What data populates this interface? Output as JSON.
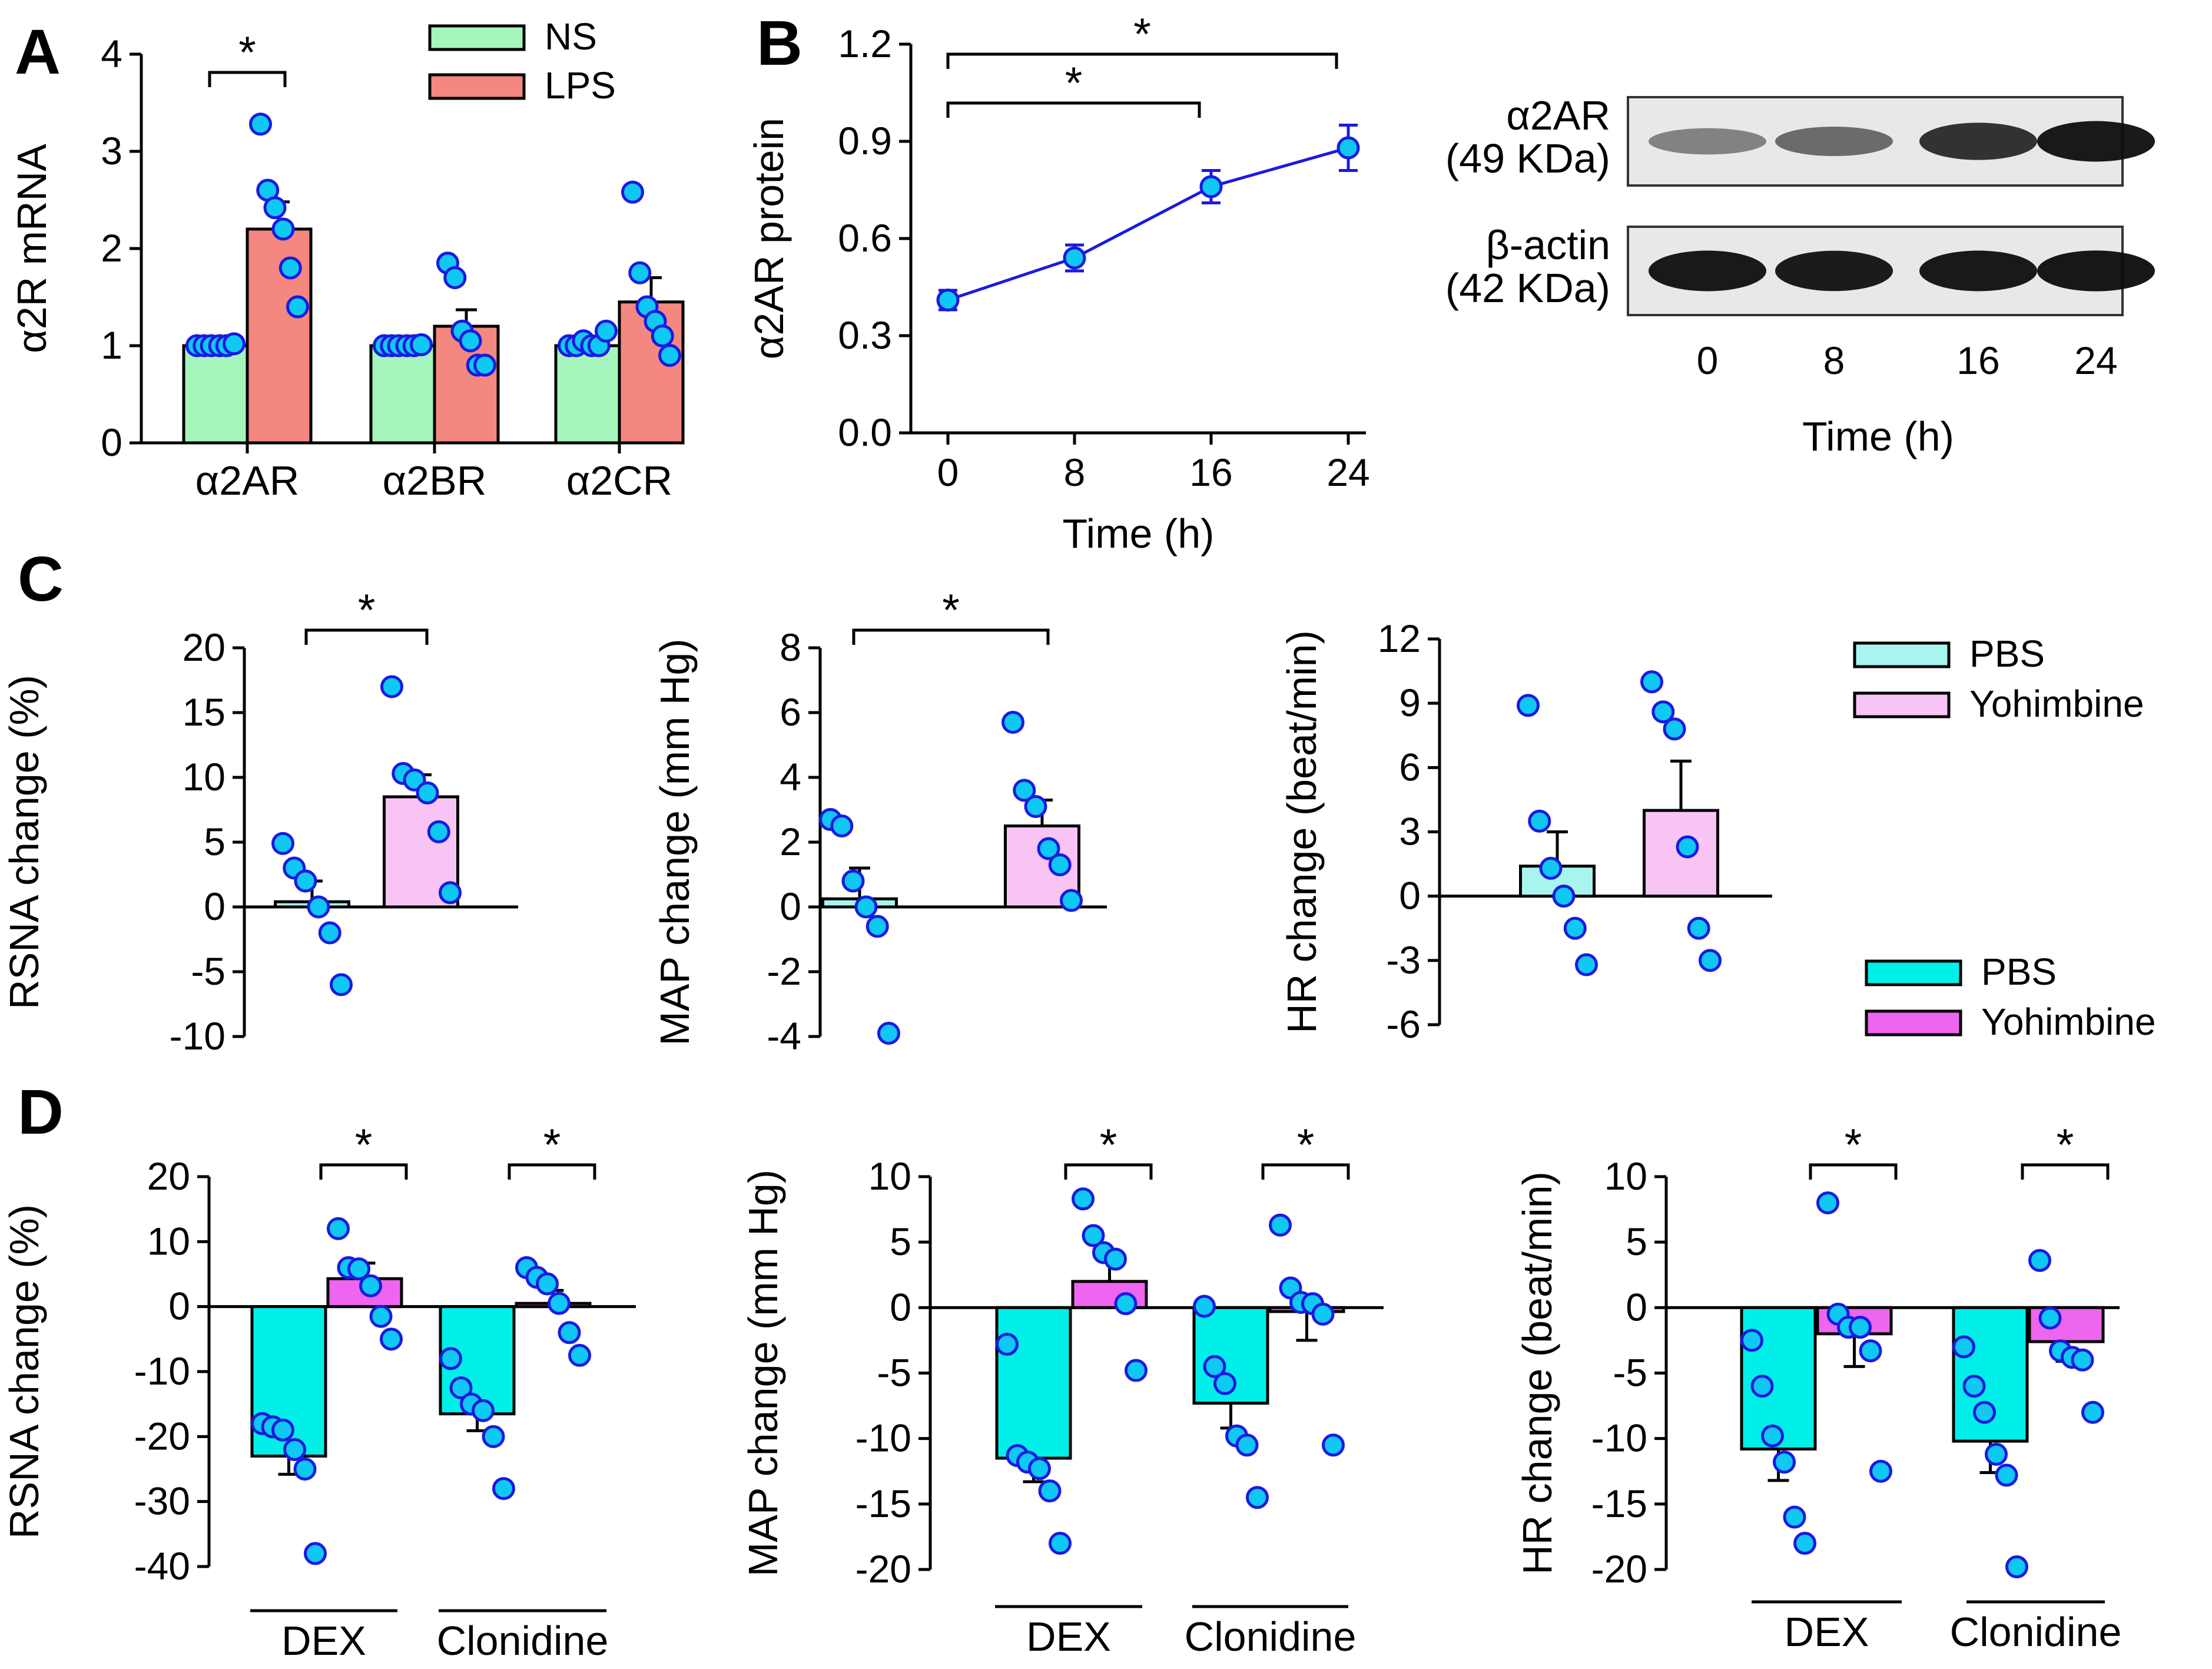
{
  "chart_data": [
    {
      "id": "A",
      "panel_label": "A",
      "type": "bar",
      "ylabel": "α2R mRNA",
      "ylim": [
        0,
        4
      ],
      "yticks": [
        0,
        1,
        2,
        3,
        4
      ],
      "categories": [
        "α2AR",
        "α2BR",
        "α2CR"
      ],
      "series": [
        {
          "name": "NS",
          "color": "#a6f5bd",
          "values": [
            1.0,
            1.0,
            1.0
          ],
          "sem": [
            0.02,
            0.02,
            0.03
          ],
          "points": [
            [
              1.0,
              1.0,
              1.0,
              1.0,
              1.0,
              1.02
            ],
            [
              1.0,
              1.0,
              1.0,
              1.0,
              1.0,
              1.01
            ],
            [
              1.0,
              1.0,
              1.05,
              1.0,
              1.0,
              1.15
            ]
          ]
        },
        {
          "name": "LPS",
          "color": "#f4877f",
          "values": [
            2.2,
            1.2,
            1.45
          ],
          "sem": [
            0.28,
            0.17,
            0.25
          ],
          "points": [
            [
              3.28,
              2.6,
              2.42,
              2.2,
              1.8,
              1.4
            ],
            [
              1.85,
              1.7,
              1.15,
              1.05,
              0.8,
              0.8
            ],
            [
              2.58,
              1.75,
              1.4,
              1.25,
              1.1,
              0.9
            ]
          ]
        }
      ],
      "significance": [
        {
          "category": 0,
          "label": "*"
        }
      ],
      "legend": "top-right"
    },
    {
      "id": "B",
      "panel_label": "B",
      "type": "line",
      "xlabel": "Time (h)",
      "ylabel": "α2AR protein",
      "x": [
        0,
        8,
        16,
        24
      ],
      "xticks": [
        "0",
        "8",
        "16",
        "24"
      ],
      "ylim": [
        0,
        1.2
      ],
      "yticks": [
        "0.0",
        "0.3",
        "0.6",
        "0.9",
        "1.2"
      ],
      "series": [
        {
          "name": "α2AR protein",
          "values": [
            0.41,
            0.54,
            0.76,
            0.88
          ],
          "sem": [
            0.03,
            0.04,
            0.05,
            0.07
          ]
        }
      ],
      "significance": [
        {
          "from_index": 0,
          "to_index": 2,
          "label": "*"
        },
        {
          "from_index": 0,
          "to_index": 3,
          "label": "*"
        }
      ]
    },
    {
      "id": "C1",
      "panel_label": "C",
      "type": "bar",
      "ylabel": "RSNA change (%)",
      "ylim": [
        -10,
        20
      ],
      "yticks": [
        -10,
        -5,
        0,
        5,
        10,
        15,
        20
      ],
      "categories": [
        "PBS",
        "Yohimbine"
      ],
      "series": [
        {
          "name": "mean",
          "colors": [
            "#a8f5f0",
            "#f8c4f4"
          ],
          "values": [
            0.4,
            8.5
          ],
          "sem": [
            1.6,
            1.7
          ],
          "points": [
            [
              4.9,
              3.0,
              2.0,
              0.0,
              -2.0,
              -6.0
            ],
            [
              17.0,
              10.3,
              9.8,
              8.8,
              5.8,
              1.1
            ]
          ]
        }
      ],
      "significance": [
        {
          "from_index": 0,
          "to_index": 1,
          "label": "*"
        }
      ]
    },
    {
      "id": "C2",
      "panel_label": "",
      "type": "bar",
      "ylabel": "MAP change (mm Hg)",
      "ylim": [
        -4,
        8
      ],
      "yticks": [
        -4,
        -2,
        0,
        2,
        4,
        6,
        8
      ],
      "categories": [
        "PBS",
        "Yohimbine"
      ],
      "series": [
        {
          "name": "mean",
          "colors": [
            "#a8f5f0",
            "#f8c4f4"
          ],
          "values": [
            0.25,
            2.5
          ],
          "sem": [
            0.95,
            0.8
          ],
          "points": [
            [
              2.7,
              2.5,
              0.8,
              0.0,
              -0.6,
              -3.9
            ],
            [
              5.7,
              3.6,
              3.1,
              1.8,
              1.3,
              0.2
            ]
          ]
        }
      ],
      "significance": [
        {
          "from_index": 0,
          "to_index": 1,
          "label": "*"
        }
      ]
    },
    {
      "id": "C3",
      "panel_label": "",
      "type": "bar",
      "ylabel": "HR change (beat/min)",
      "ylim": [
        -6,
        12
      ],
      "yticks": [
        -6,
        -3,
        0,
        3,
        6,
        9,
        12
      ],
      "categories": [
        "PBS",
        "Yohimbine"
      ],
      "series": [
        {
          "name": "mean",
          "colors": [
            "#a8f5f0",
            "#f8c4f4"
          ],
          "values": [
            1.4,
            4.0
          ],
          "sem": [
            1.6,
            2.3
          ],
          "points": [
            [
              8.9,
              3.5,
              1.3,
              0.0,
              -1.5,
              -3.2
            ],
            [
              10.0,
              8.6,
              7.8,
              2.3,
              -1.5,
              -3.0
            ]
          ]
        }
      ],
      "legend": "right",
      "legend_entries": [
        {
          "label": "PBS",
          "color": "#a8f5f0"
        },
        {
          "label": "Yohimbine",
          "color": "#f8c4f4"
        }
      ]
    },
    {
      "id": "D1",
      "panel_label": "D",
      "type": "bar",
      "ylabel": "RSNA change (%)",
      "ylim": [
        -40,
        20
      ],
      "yticks": [
        -40,
        -30,
        -20,
        -10,
        0,
        10,
        20
      ],
      "categories": [
        "DEX",
        "Clonidine"
      ],
      "series": [
        {
          "name": "PBS",
          "color": "#00efe8",
          "values": [
            -23,
            -16.5
          ],
          "sem": [
            2.8,
            2.6
          ],
          "points": [
            [
              -18.0,
              -18.5,
              -19.0,
              -22.0,
              -25.0,
              -38.0
            ],
            [
              -8.0,
              -12.5,
              -15.0,
              -16.0,
              -20.0,
              -28.0
            ]
          ]
        },
        {
          "name": "Yohimbine",
          "color": "#ee66f0",
          "values": [
            4.3,
            0.5
          ],
          "sem": [
            2.4,
            2.0
          ],
          "points": [
            [
              12.0,
              6.0,
              5.8,
              3.2,
              -1.5,
              -5.0
            ],
            [
              6.0,
              4.5,
              3.5,
              0.5,
              -4.0,
              -7.5
            ]
          ]
        }
      ],
      "significance": [
        {
          "category": 0,
          "label": "*"
        },
        {
          "category": 1,
          "label": "*"
        }
      ]
    },
    {
      "id": "D2",
      "panel_label": "",
      "type": "bar",
      "ylabel": "MAP change (mm Hg)",
      "ylim": [
        -20,
        10
      ],
      "yticks": [
        -20,
        -15,
        -10,
        -5,
        0,
        5,
        10
      ],
      "categories": [
        "DEX",
        "Clonidine"
      ],
      "series": [
        {
          "name": "PBS",
          "color": "#00efe8",
          "values": [
            -11.5,
            -7.3
          ],
          "sem": [
            1.8,
            1.9
          ],
          "points": [
            [
              -2.8,
              -11.3,
              -11.8,
              -12.3,
              -14.0,
              -18.0
            ],
            [
              0.1,
              -4.5,
              -5.8,
              -9.8,
              -10.5,
              -14.5
            ]
          ]
        },
        {
          "name": "Yohimbine",
          "color": "#ee66f0",
          "values": [
            2.0,
            -0.3
          ],
          "sem": [
            1.8,
            2.2
          ],
          "points": [
            [
              8.3,
              5.5,
              4.2,
              3.7,
              0.3,
              -4.8
            ],
            [
              6.3,
              1.5,
              0.4,
              0.3,
              -0.5,
              -10.5
            ]
          ]
        }
      ],
      "significance": [
        {
          "category": 0,
          "label": "*"
        },
        {
          "category": 1,
          "label": "*"
        }
      ]
    },
    {
      "id": "D3",
      "panel_label": "",
      "type": "bar",
      "ylabel": "HR change (beat/min)",
      "ylim": [
        -20,
        10
      ],
      "yticks": [
        -20,
        -15,
        -10,
        -5,
        0,
        5,
        10
      ],
      "categories": [
        "DEX",
        "Clonidine"
      ],
      "series": [
        {
          "name": "PBS",
          "color": "#00efe8",
          "values": [
            -10.8,
            -10.2
          ],
          "sem": [
            2.4,
            2.4
          ],
          "points": [
            [
              -2.5,
              -6.0,
              -9.8,
              -11.8,
              -16.0,
              -18.0
            ],
            [
              -3.0,
              -6.0,
              -8.0,
              -11.2,
              -12.8,
              -19.8
            ]
          ]
        },
        {
          "name": "Yohimbine",
          "color": "#ee66f0",
          "values": [
            -2.0,
            -2.6
          ],
          "sem": [
            2.5,
            1.5
          ],
          "points": [
            [
              8.0,
              -0.5,
              -1.5,
              -1.5,
              -3.3,
              -12.5
            ],
            [
              3.6,
              -0.8,
              -3.3,
              -3.8,
              -4.0,
              -8.0
            ]
          ]
        }
      ],
      "significance": [
        {
          "category": 0,
          "label": "*"
        },
        {
          "category": 1,
          "label": "*"
        }
      ],
      "legend": "right",
      "legend_entries": [
        {
          "label": "PBS",
          "color": "#00efe8"
        },
        {
          "label": "Yohimbine",
          "color": "#ee66f0"
        }
      ]
    }
  ],
  "western_blot": {
    "bands": [
      {
        "name": "α2AR",
        "size": "(49 KDa)",
        "intensities": [
          0.38,
          0.5,
          0.8,
          0.93
        ]
      },
      {
        "name": "β-actin",
        "size": "(42 KDa)",
        "intensities": [
          0.93,
          0.92,
          0.93,
          0.94
        ]
      }
    ],
    "lanes": [
      "0",
      "8",
      "16",
      "24"
    ],
    "xlabel": "Time (h)"
  }
}
